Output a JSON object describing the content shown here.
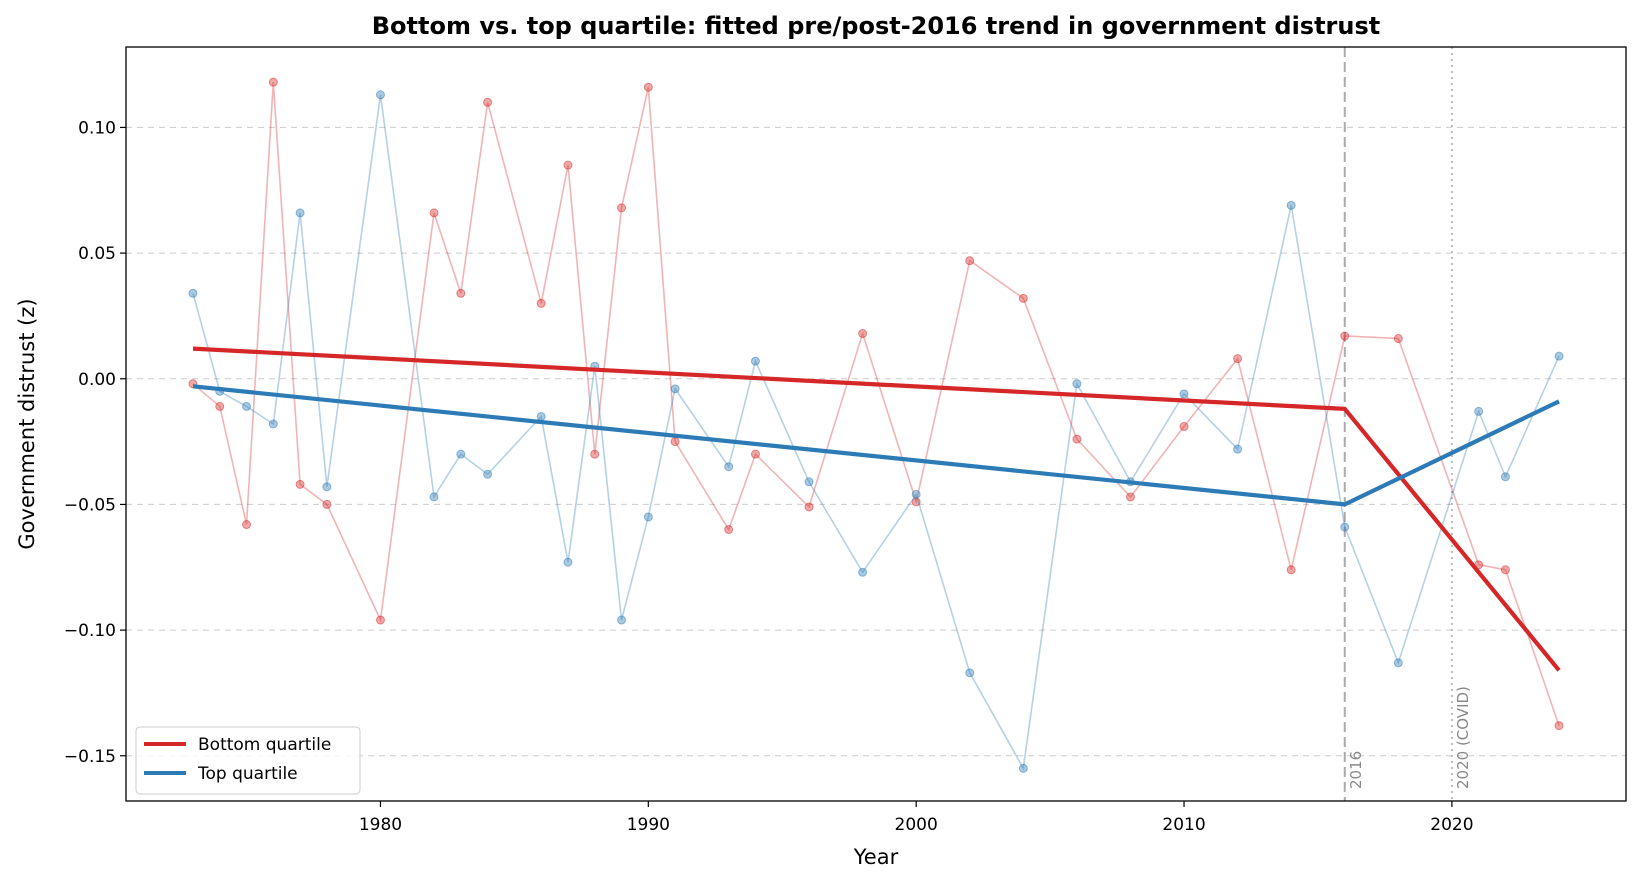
{
  "chart_data": {
    "type": "line",
    "title": "Bottom vs. top quartile: fitted pre/post-2016 trend in government distrust",
    "xlabel": "Year",
    "ylabel": "Government distrust (z)",
    "xlim": [
      1970.5,
      2026.5
    ],
    "ylim": [
      -0.168,
      0.132
    ],
    "xticks": [
      1980,
      1990,
      2000,
      2010,
      2020
    ],
    "yticks": [
      0.1,
      0.05,
      0.0,
      -0.05,
      -0.1,
      -0.15
    ],
    "ytick_labels": [
      "0.10",
      "0.05",
      "0.00",
      "−0.05",
      "−0.10",
      "−0.15"
    ],
    "grid": "horizontal dashed",
    "legend_position": "lower-left",
    "series": [
      {
        "name": "Bottom quartile",
        "color": "#d62728",
        "x": [
          1973,
          1974,
          1975,
          1976,
          1977,
          1978,
          1980,
          1982,
          1983,
          1984,
          1986,
          1987,
          1988,
          1989,
          1990,
          1991,
          1993,
          1994,
          1996,
          1998,
          2000,
          2002,
          2004,
          2006,
          2008,
          2010,
          2012,
          2014,
          2016,
          2018,
          2021,
          2022,
          2024
        ],
        "values": [
          -0.002,
          -0.011,
          -0.058,
          0.118,
          -0.042,
          -0.05,
          -0.096,
          0.066,
          0.034,
          0.11,
          0.03,
          0.085,
          -0.03,
          0.068,
          0.116,
          -0.025,
          -0.06,
          -0.03,
          -0.051,
          0.018,
          -0.049,
          0.047,
          0.032,
          -0.024,
          -0.047,
          -0.019,
          0.008,
          -0.076,
          0.017,
          0.016,
          -0.074,
          -0.076,
          -0.138
        ],
        "fit": {
          "x": [
            1973,
            2016,
            2024
          ],
          "values": [
            0.012,
            -0.012,
            -0.116
          ]
        }
      },
      {
        "name": "Top quartile",
        "color": "#2c7bb6",
        "x": [
          1973,
          1974,
          1975,
          1976,
          1977,
          1978,
          1980,
          1982,
          1983,
          1984,
          1986,
          1987,
          1988,
          1989,
          1990,
          1991,
          1993,
          1994,
          1996,
          1998,
          2000,
          2002,
          2004,
          2006,
          2008,
          2010,
          2012,
          2014,
          2016,
          2018,
          2021,
          2022,
          2024
        ],
        "values": [
          0.034,
          -0.005,
          -0.011,
          -0.018,
          0.066,
          -0.043,
          0.113,
          -0.047,
          -0.03,
          -0.038,
          -0.015,
          -0.073,
          0.005,
          -0.096,
          -0.055,
          -0.004,
          -0.035,
          0.007,
          -0.041,
          -0.077,
          -0.046,
          -0.117,
          -0.155,
          -0.002,
          -0.041,
          -0.006,
          -0.028,
          0.069,
          -0.059,
          -0.113,
          -0.013,
          -0.039,
          0.009
        ],
        "fit": {
          "x": [
            1973,
            2016,
            2024
          ],
          "values": [
            -0.003,
            -0.05,
            -0.009
          ]
        }
      }
    ],
    "vlines": [
      {
        "x": 2016,
        "label": "2016",
        "style": "dashed",
        "color": "#aaaaaa"
      },
      {
        "x": 2020,
        "label": "2020 (COVID)",
        "style": "dotted",
        "color": "#bbbbbb"
      }
    ]
  }
}
